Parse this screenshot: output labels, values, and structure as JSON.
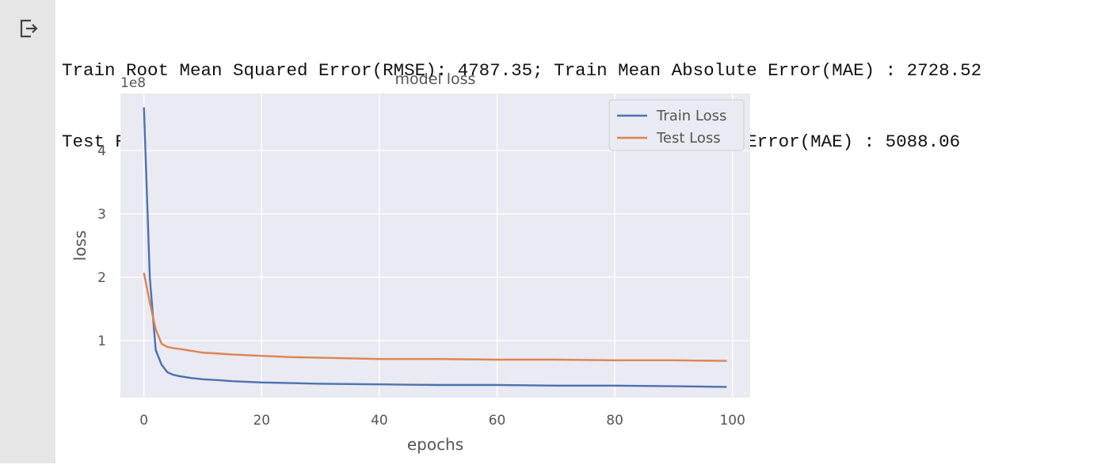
{
  "cell": {
    "output_icon": "output-arrow-icon",
    "stdout": [
      "Train Root Mean Squared Error(RMSE): 4787.35; Train Mean Absolute Error(MAE) : 2728.52",
      "Test Root Mean Squared Error(RMSE): 8168.90; Test Mean Absolute Error(MAE) : 5088.06"
    ]
  },
  "chart_data": {
    "type": "line",
    "title": "model loss",
    "xlabel": "epochs",
    "ylabel": "loss",
    "y_scale_label": "1e8",
    "xlim": [
      -4,
      103
    ],
    "ylim": [
      0.1,
      4.9
    ],
    "x_ticks": [
      0,
      20,
      40,
      60,
      80,
      100
    ],
    "y_ticks": [
      1,
      2,
      3,
      4
    ],
    "grid": true,
    "legend_position": "top-right",
    "colors": {
      "background": "#eaeaf2",
      "grid": "#ffffff",
      "Train Loss": "#4c72b0",
      "Test Loss": "#dd8452",
      "text": "#555555"
    },
    "series": [
      {
        "name": "Train Loss",
        "x": [
          0,
          1,
          2,
          3,
          4,
          5,
          6,
          8,
          10,
          12,
          15,
          20,
          25,
          30,
          40,
          50,
          60,
          70,
          80,
          90,
          99
        ],
        "values": [
          4.68,
          2.0,
          0.85,
          0.62,
          0.5,
          0.46,
          0.44,
          0.41,
          0.39,
          0.38,
          0.36,
          0.34,
          0.33,
          0.32,
          0.31,
          0.3,
          0.3,
          0.29,
          0.29,
          0.28,
          0.27
        ]
      },
      {
        "name": "Test Loss",
        "x": [
          0,
          1,
          2,
          3,
          4,
          5,
          6,
          8,
          10,
          12,
          15,
          20,
          25,
          30,
          40,
          50,
          60,
          70,
          80,
          90,
          99
        ],
        "values": [
          2.07,
          1.6,
          1.18,
          0.95,
          0.9,
          0.88,
          0.87,
          0.84,
          0.81,
          0.8,
          0.78,
          0.76,
          0.74,
          0.73,
          0.71,
          0.71,
          0.7,
          0.7,
          0.69,
          0.69,
          0.68
        ]
      }
    ]
  }
}
